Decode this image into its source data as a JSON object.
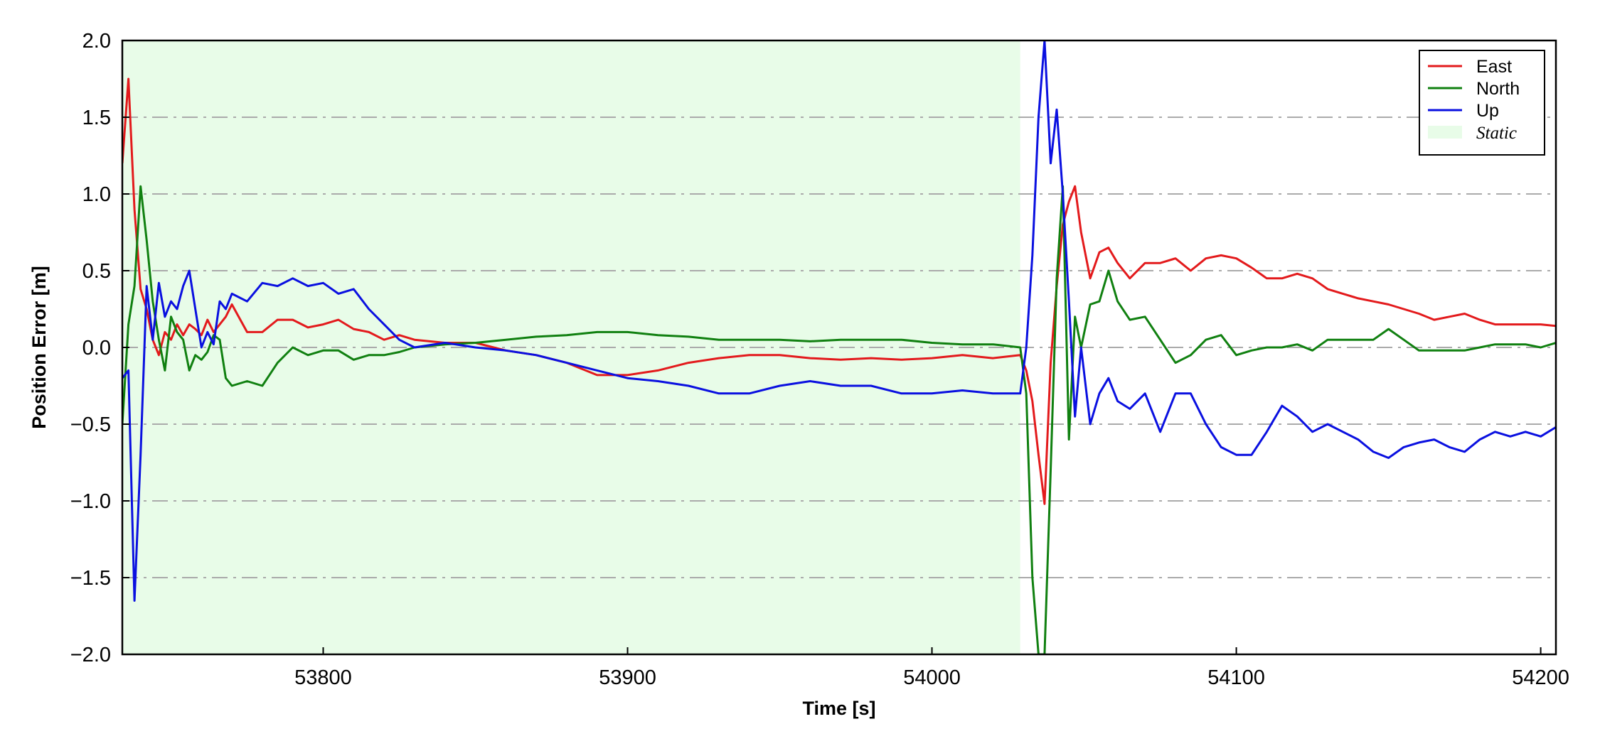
{
  "chart_data": {
    "type": "line",
    "title": "",
    "xlabel": "Time [s]",
    "ylabel": "Position Error [m]",
    "xlim": [
      53734,
      54205
    ],
    "ylim": [
      -2.0,
      2.0
    ],
    "xticks": [
      53800,
      53900,
      54000,
      54100,
      54200
    ],
    "xtick_labels": [
      "53800",
      "53900",
      "54000",
      "54100",
      "54200"
    ],
    "yticks": [
      -2.0,
      -1.5,
      -1.0,
      -0.5,
      0.0,
      0.5,
      1.0,
      1.5,
      2.0
    ],
    "ytick_labels": [
      "−2.0",
      "−1.5",
      "−1.0",
      "−0.5",
      "0.0",
      "0.5",
      "1.0",
      "1.5",
      "2.0"
    ],
    "grid": "horizontal dash-dot",
    "legend_position": "top-right",
    "static_region": {
      "label": "Static",
      "x_start": 53734,
      "x_end": 54029,
      "color": "#e8fce8"
    },
    "series": [
      {
        "name": "East",
        "color": "#e31a1c",
        "x": [
          53734,
          53736,
          53738,
          53740,
          53742,
          53744,
          53746,
          53748,
          53750,
          53752,
          53754,
          53756,
          53758,
          53760,
          53762,
          53764,
          53766,
          53768,
          53770,
          53775,
          53780,
          53785,
          53790,
          53795,
          53800,
          53805,
          53810,
          53815,
          53820,
          53825,
          53830,
          53840,
          53850,
          53860,
          53870,
          53880,
          53890,
          53900,
          53910,
          53920,
          53930,
          53940,
          53950,
          53960,
          53970,
          53980,
          53990,
          54000,
          54010,
          54020,
          54029,
          54031,
          54033,
          54035,
          54037,
          54039,
          54041,
          54043,
          54045,
          54047,
          54049,
          54052,
          54055,
          54058,
          54061,
          54065,
          54070,
          54075,
          54080,
          54085,
          54090,
          54095,
          54100,
          54105,
          54110,
          54115,
          54120,
          54125,
          54130,
          54135,
          54140,
          54145,
          54150,
          54155,
          54160,
          54165,
          54170,
          54175,
          54180,
          54185,
          54190,
          54195,
          54200,
          54205
        ],
        "y": [
          1.2,
          1.75,
          0.9,
          0.38,
          0.25,
          0.05,
          -0.05,
          0.1,
          0.05,
          0.15,
          0.08,
          0.15,
          0.12,
          0.08,
          0.18,
          0.1,
          0.15,
          0.2,
          0.28,
          0.1,
          0.1,
          0.18,
          0.18,
          0.13,
          0.15,
          0.18,
          0.12,
          0.1,
          0.05,
          0.08,
          0.05,
          0.03,
          0.03,
          -0.02,
          -0.05,
          -0.1,
          -0.18,
          -0.18,
          -0.15,
          -0.1,
          -0.07,
          -0.05,
          -0.05,
          -0.07,
          -0.08,
          -0.07,
          -0.08,
          -0.07,
          -0.05,
          -0.07,
          -0.05,
          -0.15,
          -0.35,
          -0.7,
          -1.02,
          -0.1,
          0.4,
          0.8,
          0.95,
          1.05,
          0.75,
          0.45,
          0.62,
          0.65,
          0.55,
          0.45,
          0.55,
          0.55,
          0.58,
          0.5,
          0.58,
          0.6,
          0.58,
          0.52,
          0.45,
          0.45,
          0.48,
          0.45,
          0.38,
          0.35,
          0.32,
          0.3,
          0.28,
          0.25,
          0.22,
          0.18,
          0.2,
          0.22,
          0.18,
          0.15,
          0.15,
          0.15,
          0.15,
          0.14
        ]
      },
      {
        "name": "North",
        "color": "#108010",
        "x": [
          53734,
          53736,
          53738,
          53740,
          53742,
          53744,
          53746,
          53748,
          53750,
          53752,
          53754,
          53756,
          53758,
          53760,
          53762,
          53764,
          53766,
          53768,
          53770,
          53775,
          53780,
          53785,
          53790,
          53795,
          53800,
          53805,
          53810,
          53815,
          53820,
          53825,
          53830,
          53840,
          53850,
          53860,
          53870,
          53880,
          53890,
          53900,
          53910,
          53920,
          53930,
          53940,
          53950,
          53960,
          53970,
          53980,
          53990,
          54000,
          54010,
          54020,
          54029,
          54031,
          54033,
          54035,
          54037,
          54039,
          54041,
          54043,
          54045,
          54047,
          54049,
          54052,
          54055,
          54058,
          54061,
          54065,
          54070,
          54075,
          54080,
          54085,
          54090,
          54095,
          54100,
          54105,
          54110,
          54115,
          54120,
          54125,
          54130,
          54135,
          54140,
          54145,
          54150,
          54155,
          54160,
          54165,
          54170,
          54175,
          54180,
          54185,
          54190,
          54195,
          54200,
          54205
        ],
        "y": [
          -0.5,
          0.15,
          0.4,
          1.05,
          0.7,
          0.3,
          0.05,
          -0.15,
          0.2,
          0.1,
          0.05,
          -0.15,
          -0.05,
          -0.08,
          -0.03,
          0.08,
          0.05,
          -0.2,
          -0.25,
          -0.22,
          -0.25,
          -0.1,
          0.0,
          -0.05,
          -0.02,
          -0.02,
          -0.08,
          -0.05,
          -0.05,
          -0.03,
          0.0,
          0.02,
          0.03,
          0.05,
          0.07,
          0.08,
          0.1,
          0.1,
          0.08,
          0.07,
          0.05,
          0.05,
          0.05,
          0.04,
          0.05,
          0.05,
          0.05,
          0.03,
          0.02,
          0.02,
          0.0,
          -0.3,
          -1.5,
          -2.0,
          -2.0,
          -0.8,
          0.45,
          1.05,
          -0.6,
          0.2,
          0.0,
          0.28,
          0.3,
          0.5,
          0.3,
          0.18,
          0.2,
          0.05,
          -0.1,
          -0.05,
          0.05,
          0.08,
          -0.05,
          -0.02,
          0.0,
          0.0,
          0.02,
          -0.02,
          0.05,
          0.05,
          0.05,
          0.05,
          0.12,
          0.05,
          -0.02,
          -0.02,
          -0.02,
          -0.02,
          0.0,
          0.02,
          0.02,
          0.02,
          0.0,
          0.03
        ]
      },
      {
        "name": "Up",
        "color": "#0a10e0",
        "x": [
          53734,
          53736,
          53738,
          53740,
          53742,
          53744,
          53746,
          53748,
          53750,
          53752,
          53754,
          53756,
          53758,
          53760,
          53762,
          53764,
          53766,
          53768,
          53770,
          53775,
          53780,
          53785,
          53790,
          53795,
          53800,
          53805,
          53810,
          53815,
          53820,
          53825,
          53830,
          53840,
          53850,
          53860,
          53870,
          53880,
          53890,
          53900,
          53910,
          53920,
          53930,
          53940,
          53950,
          53960,
          53970,
          53980,
          53990,
          54000,
          54010,
          54020,
          54029,
          54031,
          54033,
          54035,
          54037,
          54039,
          54041,
          54043,
          54045,
          54047,
          54049,
          54052,
          54055,
          54058,
          54061,
          54065,
          54070,
          54075,
          54080,
          54085,
          54090,
          54095,
          54100,
          54105,
          54110,
          54115,
          54120,
          54125,
          54130,
          54135,
          54140,
          54145,
          54150,
          54155,
          54160,
          54165,
          54170,
          54175,
          54180,
          54185,
          54190,
          54195,
          54200,
          54205
        ],
        "y": [
          -0.2,
          -0.15,
          -1.65,
          -0.7,
          0.4,
          0.05,
          0.42,
          0.2,
          0.3,
          0.25,
          0.4,
          0.5,
          0.25,
          0.0,
          0.1,
          0.02,
          0.3,
          0.25,
          0.35,
          0.3,
          0.42,
          0.4,
          0.45,
          0.4,
          0.42,
          0.35,
          0.38,
          0.25,
          0.15,
          0.05,
          0.0,
          0.03,
          0.0,
          -0.02,
          -0.05,
          -0.1,
          -0.15,
          -0.2,
          -0.22,
          -0.25,
          -0.3,
          -0.3,
          -0.25,
          -0.22,
          -0.25,
          -0.25,
          -0.3,
          -0.3,
          -0.28,
          -0.3,
          -0.3,
          0.0,
          0.6,
          1.5,
          2.0,
          1.2,
          1.55,
          1.0,
          0.3,
          -0.45,
          0.0,
          -0.5,
          -0.3,
          -0.2,
          -0.35,
          -0.4,
          -0.3,
          -0.55,
          -0.3,
          -0.3,
          -0.5,
          -0.65,
          -0.7,
          -0.7,
          -0.55,
          -0.38,
          -0.45,
          -0.55,
          -0.5,
          -0.55,
          -0.6,
          -0.68,
          -0.72,
          -0.65,
          -0.62,
          -0.6,
          -0.65,
          -0.68,
          -0.6,
          -0.55,
          -0.58,
          -0.55,
          -0.58,
          -0.52
        ]
      }
    ]
  }
}
